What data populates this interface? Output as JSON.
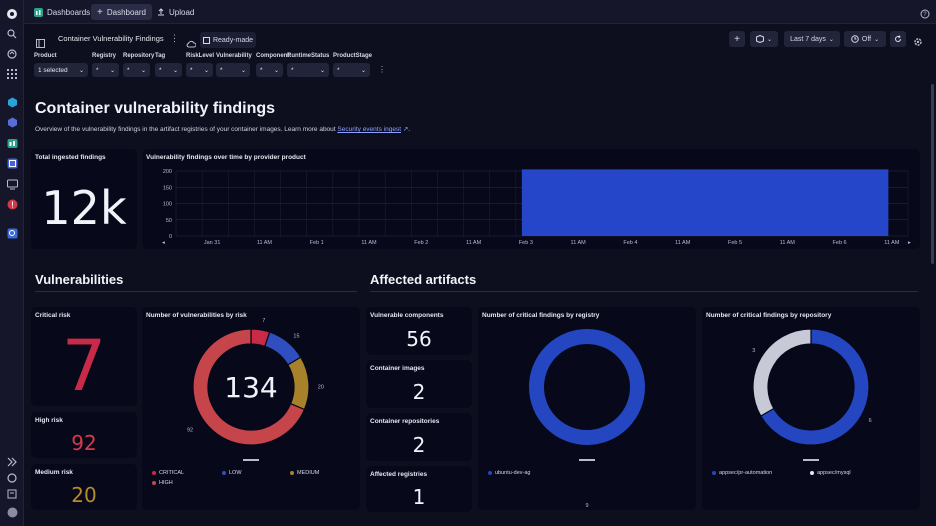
{
  "topbar": {
    "tabs": [
      {
        "label": "Dashboards",
        "icon": "dashboards-app-icon"
      },
      {
        "label": "Dashboard",
        "icon": "plus-icon"
      },
      {
        "label": "Upload",
        "icon": "upload-icon"
      }
    ]
  },
  "toolbar": {
    "title": "Container Vulnerability Findings",
    "badge": "Ready-made",
    "timeframe": "Last 7 days",
    "refresh": "Off"
  },
  "filters": [
    {
      "label": "Product",
      "value": "1 selected"
    },
    {
      "label": "Registry",
      "value": "*"
    },
    {
      "label": "Repository",
      "value": "*"
    },
    {
      "label": "Tag",
      "value": "*"
    },
    {
      "label": "RiskLevel",
      "value": "*"
    },
    {
      "label": "Vulnerability",
      "value": "*"
    },
    {
      "label": "Component",
      "value": "*"
    },
    {
      "label": "RuntimeStatus",
      "value": "*"
    },
    {
      "label": "ProductStage",
      "value": "*"
    }
  ],
  "header": {
    "title": "Container vulnerability findings",
    "description": "Overview of the vulnerability findings in the artifact registries of your container images. Learn more about",
    "link": "Security events ingest",
    "period": "."
  },
  "tiles": {
    "total_title": "Total ingested findings",
    "total_value": "12k",
    "timeline_title": "Vulnerability findings over time by provider product",
    "vuln_section": "Vulnerabilities",
    "affected_section": "Affected artifacts",
    "critical_title": "Critical risk",
    "critical_value": "7",
    "high_title": "High risk",
    "high_value": "92",
    "medium_title": "Medium risk",
    "medium_value": "20",
    "donut_risk_title": "Number of vulnerabilities by risk",
    "donut_risk_total": "134",
    "components_title": "Vulnerable components",
    "components_value": "56",
    "images_title": "Container images",
    "images_value": "2",
    "repos_title": "Container repositories",
    "repos_value": "2",
    "registries_title": "Affected registries",
    "registries_value": "1",
    "donut_registry_title": "Number of critical findings by registry",
    "donut_repo_title": "Number of critical findings by repository"
  },
  "colors": {
    "critical": "#c92a48",
    "high": "#c5454a",
    "medium": "#a8822a",
    "low": "#2f4fbf",
    "blue": "#2446c0",
    "grey": "#c8c9d6",
    "bar": "#2546c8"
  },
  "chart_data": [
    {
      "type": "area",
      "title": "Vulnerability findings over time by provider product",
      "x": [
        "Jan 31",
        "11 AM",
        "Feb 1",
        "11 AM",
        "Feb 2",
        "11 AM",
        "Feb 3",
        "11 AM",
        "Feb 4",
        "11 AM",
        "Feb 5",
        "11 AM",
        "Feb 6",
        "11 AM"
      ],
      "yticks": [
        0,
        50,
        100,
        150,
        200
      ],
      "ylim": [
        0,
        200
      ],
      "series": [
        {
          "values": [
            0,
            0,
            0,
            0,
            0,
            0,
            205,
            205,
            205,
            205,
            205,
            205,
            205,
            0
          ]
        }
      ],
      "grid": true
    },
    {
      "type": "pie",
      "title": "Number of vulnerabilities by risk",
      "categories": [
        "CRITICAL",
        "LOW",
        "MEDIUM",
        "HIGH"
      ],
      "values": [
        7,
        15,
        20,
        92
      ]
    },
    {
      "type": "pie",
      "title": "Number of critical findings by registry",
      "categories": [
        "ubuntu-dev-ag"
      ],
      "values": [
        9
      ]
    },
    {
      "type": "pie",
      "title": "Number of critical findings by repository",
      "categories": [
        "appsec/pr-automation",
        "appsec/mysql"
      ],
      "values": [
        6,
        3
      ]
    }
  ]
}
